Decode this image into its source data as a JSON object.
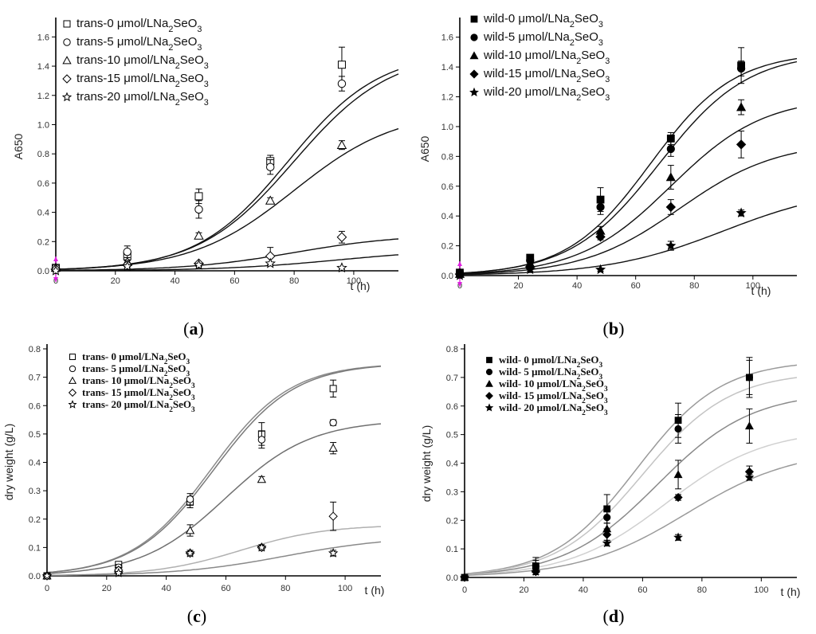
{
  "chart_data": [
    {
      "panel": "(a)",
      "panel_letter": "a",
      "type": "scatter",
      "xlabel": "t (h)",
      "ylabel": "A650",
      "xlim": [
        0,
        115
      ],
      "ylim": [
        0,
        1.7
      ],
      "xticks": [
        0,
        20,
        40,
        60,
        80,
        100
      ],
      "xtick_labels": [
        "0",
        "20",
        "40",
        "60",
        "80",
        "100"
      ],
      "yticks": [
        0,
        0.2,
        0.4,
        0.6,
        0.8,
        1.0,
        1.2,
        1.4,
        1.6
      ],
      "ytick_labels": [
        "0.0",
        "0.2",
        "0.4",
        "0.6",
        "0.8",
        "1.0",
        "1.2",
        "1.4",
        "1.6"
      ],
      "series": [
        {
          "name": "trans-0 μmol/LNa₂SeO₃",
          "marker": "square-open",
          "x": [
            0,
            24,
            48,
            72,
            96
          ],
          "y": [
            0.02,
            0.1,
            0.51,
            0.75,
            1.41
          ],
          "err": [
            0,
            0.03,
            0.05,
            0.04,
            0.12
          ],
          "fit": {
            "K": 1.5,
            "r": 0.065,
            "t0": 78
          }
        },
        {
          "name": "trans-5 μmol/LNa₂SeO₃",
          "marker": "circle-open",
          "x": [
            0,
            24,
            48,
            72,
            96
          ],
          "y": [
            0.02,
            0.13,
            0.42,
            0.71,
            1.28
          ],
          "err": [
            0,
            0.04,
            0.06,
            0.05,
            0.05
          ],
          "fit": {
            "K": 1.5,
            "r": 0.062,
            "t0": 80
          }
        },
        {
          "name": "trans-10 μmol/LNa₂SeO₃",
          "marker": "triangle-open",
          "x": [
            0,
            24,
            48,
            72,
            96
          ],
          "y": [
            0.02,
            0.06,
            0.24,
            0.48,
            0.86
          ],
          "err": [
            0,
            0.01,
            0.02,
            0.02,
            0.03
          ],
          "fit": {
            "K": 1.1,
            "r": 0.058,
            "t0": 80
          }
        },
        {
          "name": "trans-15 μmol/LNa₂SeO₃",
          "marker": "diamond-open",
          "x": [
            0,
            24,
            48,
            72,
            96
          ],
          "y": [
            0.01,
            0.04,
            0.05,
            0.1,
            0.23
          ],
          "err": [
            0,
            0.01,
            0.01,
            0.06,
            0.04
          ],
          "fit": {
            "K": 0.25,
            "r": 0.055,
            "t0": 80
          }
        },
        {
          "name": "trans-20 μmol/LNa₂SeO₃",
          "marker": "star-open",
          "x": [
            0,
            24,
            48,
            72,
            96
          ],
          "y": [
            0.0,
            0.03,
            0.04,
            0.05,
            0.02
          ],
          "err": [
            0,
            0.01,
            0.01,
            0.01,
            0.01
          ],
          "fit": {
            "K": 0.15,
            "r": 0.05,
            "t0": 95
          }
        }
      ]
    },
    {
      "panel": "(b)",
      "panel_letter": "b",
      "type": "scatter",
      "xlabel": "t (h)",
      "ylabel": "A650",
      "xlim": [
        0,
        115
      ],
      "ylim": [
        0,
        1.7
      ],
      "xticks": [
        0,
        20,
        40,
        60,
        80,
        100
      ],
      "xtick_labels": [
        "0",
        "20",
        "40",
        "60",
        "80",
        "100"
      ],
      "yticks": [
        0,
        0.2,
        0.4,
        0.6,
        0.8,
        1.0,
        1.2,
        1.4,
        1.6
      ],
      "ytick_labels": [
        "0.0",
        "0.2",
        "0.4",
        "0.6",
        "0.8",
        "1.0",
        "1.2",
        "1.4",
        "1.6"
      ],
      "series": [
        {
          "name": "wild-0 μmol/LNa₂SeO₃",
          "marker": "square-filled",
          "x": [
            0,
            24,
            48,
            72,
            96
          ],
          "y": [
            0.02,
            0.12,
            0.51,
            0.92,
            1.41
          ],
          "err": [
            0,
            0.02,
            0.08,
            0.04,
            0.12
          ],
          "fit": {
            "K": 1.5,
            "r": 0.07,
            "t0": 65
          }
        },
        {
          "name": "wild-5 μmol/LNa₂SeO₃",
          "marker": "circle-filled",
          "x": [
            0,
            24,
            48,
            72,
            96
          ],
          "y": [
            0.02,
            0.1,
            0.46,
            0.85,
            1.39
          ],
          "err": [
            0,
            0.03,
            0.05,
            0.05,
            0.05
          ],
          "fit": {
            "K": 1.5,
            "r": 0.066,
            "t0": 68
          }
        },
        {
          "name": "wild-10 μmol/LNa₂SeO₃",
          "marker": "triangle-filled",
          "x": [
            0,
            24,
            48,
            72,
            96
          ],
          "y": [
            0.01,
            0.08,
            0.3,
            0.66,
            1.13
          ],
          "err": [
            0,
            0.02,
            0.03,
            0.08,
            0.05
          ],
          "fit": {
            "K": 1.2,
            "r": 0.063,
            "t0": 72
          }
        },
        {
          "name": "wild-15 μmol/LNa₂SeO₃",
          "marker": "diamond-filled",
          "x": [
            0,
            24,
            48,
            72,
            96
          ],
          "y": [
            0.01,
            0.06,
            0.26,
            0.46,
            0.88
          ],
          "err": [
            0,
            0.02,
            0.02,
            0.05,
            0.09
          ],
          "fit": {
            "K": 0.9,
            "r": 0.06,
            "t0": 75
          }
        },
        {
          "name": "wild-20 μmol/LNa₂SeO₃",
          "marker": "star-filled",
          "x": [
            0,
            24,
            48,
            72,
            96
          ],
          "y": [
            0.0,
            0.04,
            0.04,
            0.2,
            0.42
          ],
          "err": [
            0,
            0.01,
            0.01,
            0.03,
            0.02
          ],
          "fit": {
            "K": 0.6,
            "r": 0.05,
            "t0": 90
          }
        }
      ]
    },
    {
      "panel": "(c)",
      "panel_letter": "c",
      "type": "scatter",
      "xlabel": "t (h)",
      "ylabel": "dry weight (g/L)",
      "xlim": [
        0,
        112
      ],
      "ylim": [
        0,
        0.8
      ],
      "xticks": [
        0,
        20,
        40,
        60,
        80,
        100
      ],
      "xtick_labels": [
        "0",
        "20",
        "40",
        "60",
        "80",
        "100"
      ],
      "yticks": [
        0,
        0.1,
        0.2,
        0.3,
        0.4,
        0.5,
        0.6,
        0.7,
        0.8
      ],
      "ytick_labels": [
        "0.0",
        "0.1",
        "0.2",
        "0.3",
        "0.4",
        "0.5",
        "0.6",
        "0.7",
        "0.8"
      ],
      "series": [
        {
          "name": "trans- 0 μmol/LNa₂SeO₃",
          "marker": "square-open",
          "x": [
            0,
            24,
            48,
            72,
            96
          ],
          "y": [
            0.0,
            0.04,
            0.26,
            0.5,
            0.66
          ],
          "err": [
            0,
            0.01,
            0.02,
            0.04,
            0.03
          ],
          "fit": {
            "K": 0.75,
            "r": 0.075,
            "t0": 55
          }
        },
        {
          "name": "trans- 5 μmol/LNa₂SeO₃",
          "marker": "circle-open",
          "x": [
            0,
            24,
            48,
            72,
            96
          ],
          "y": [
            0.0,
            0.03,
            0.27,
            0.48,
            0.54
          ],
          "err": [
            0,
            0.01,
            0.02,
            0.03,
            0.01
          ],
          "fit": {
            "K": 0.75,
            "r": 0.074,
            "t0": 56
          }
        },
        {
          "name": "trans- 10 μmol/LNa₂SeO₃",
          "marker": "triangle-open",
          "x": [
            0,
            24,
            48,
            72,
            96
          ],
          "y": [
            0.0,
            0.02,
            0.16,
            0.34,
            0.45
          ],
          "err": [
            0,
            0.01,
            0.02,
            0.01,
            0.02
          ],
          "fit": {
            "K": 0.55,
            "r": 0.07,
            "t0": 60
          }
        },
        {
          "name": "trans- 15 μmol/LNa₂SeO₃",
          "marker": "diamond-open",
          "x": [
            0,
            24,
            48,
            72,
            96
          ],
          "y": [
            0.0,
            0.02,
            0.08,
            0.1,
            0.21
          ],
          "err": [
            0,
            0.01,
            0.01,
            0.01,
            0.05
          ],
          "fit": {
            "K": 0.18,
            "r": 0.07,
            "t0": 65
          }
        },
        {
          "name": "trans- 20 μmol/LNa₂SeO₃",
          "marker": "star-open",
          "x": [
            0,
            24,
            48,
            72,
            96
          ],
          "y": [
            0.0,
            0.01,
            0.08,
            0.1,
            0.08
          ],
          "err": [
            0,
            0.005,
            0.005,
            0.005,
            0.01
          ],
          "fit": {
            "K": 0.14,
            "r": 0.055,
            "t0": 80
          }
        }
      ]
    },
    {
      "panel": "(d)",
      "panel_letter": "d",
      "type": "scatter",
      "xlabel": "t (h)",
      "ylabel": "dry weight (g/L)",
      "xlim": [
        0,
        112
      ],
      "ylim": [
        0,
        0.8
      ],
      "xticks": [
        0,
        20,
        40,
        60,
        80,
        100
      ],
      "xtick_labels": [
        "0",
        "20",
        "40",
        "60",
        "80",
        "100"
      ],
      "yticks": [
        0,
        0.1,
        0.2,
        0.3,
        0.4,
        0.5,
        0.6,
        0.7,
        0.8
      ],
      "ytick_labels": [
        "0.0",
        "0.1",
        "0.2",
        "0.3",
        "0.4",
        "0.5",
        "0.6",
        "0.7",
        "0.8"
      ],
      "series": [
        {
          "name": "wild- 0 μmol/LNa₂SeO₃",
          "marker": "square-filled",
          "x": [
            0,
            24,
            48,
            72,
            96
          ],
          "y": [
            0.0,
            0.04,
            0.24,
            0.55,
            0.7
          ],
          "err": [
            0,
            0.03,
            0.05,
            0.06,
            0.07
          ],
          "fit": {
            "K": 0.76,
            "r": 0.07,
            "t0": 58
          }
        },
        {
          "name": "wild- 5 μmol/LNa₂SeO₃",
          "marker": "circle-filled",
          "x": [
            0,
            24,
            48,
            72,
            96
          ],
          "y": [
            0.0,
            0.04,
            0.21,
            0.52,
            0.7
          ],
          "err": [
            0,
            0.02,
            0.04,
            0.05,
            0.06
          ],
          "fit": {
            "K": 0.72,
            "r": 0.068,
            "t0": 60
          }
        },
        {
          "name": "wild- 10 μmol/LNa₂SeO₃",
          "marker": "triangle-filled",
          "x": [
            0,
            24,
            48,
            72,
            96
          ],
          "y": [
            0.0,
            0.03,
            0.17,
            0.36,
            0.53
          ],
          "err": [
            0,
            0.01,
            0.02,
            0.05,
            0.06
          ],
          "fit": {
            "K": 0.65,
            "r": 0.063,
            "t0": 65
          }
        },
        {
          "name": "wild- 15 μmol/LNa₂SeO₃",
          "marker": "diamond-filled",
          "x": [
            0,
            24,
            48,
            72,
            96
          ],
          "y": [
            0.0,
            0.02,
            0.15,
            0.28,
            0.37
          ],
          "err": [
            0,
            0.01,
            0.02,
            0.01,
            0.02
          ],
          "fit": {
            "K": 0.52,
            "r": 0.06,
            "t0": 68
          }
        },
        {
          "name": "wild- 20 μmol/LNa₂SeO₃",
          "marker": "star-filled",
          "x": [
            0,
            24,
            48,
            72,
            96
          ],
          "y": [
            0.0,
            0.02,
            0.12,
            0.14,
            0.35
          ],
          "err": [
            0,
            0.01,
            0.01,
            0.01,
            0.01
          ],
          "fit": {
            "K": 0.45,
            "r": 0.055,
            "t0": 75
          }
        }
      ]
    }
  ]
}
